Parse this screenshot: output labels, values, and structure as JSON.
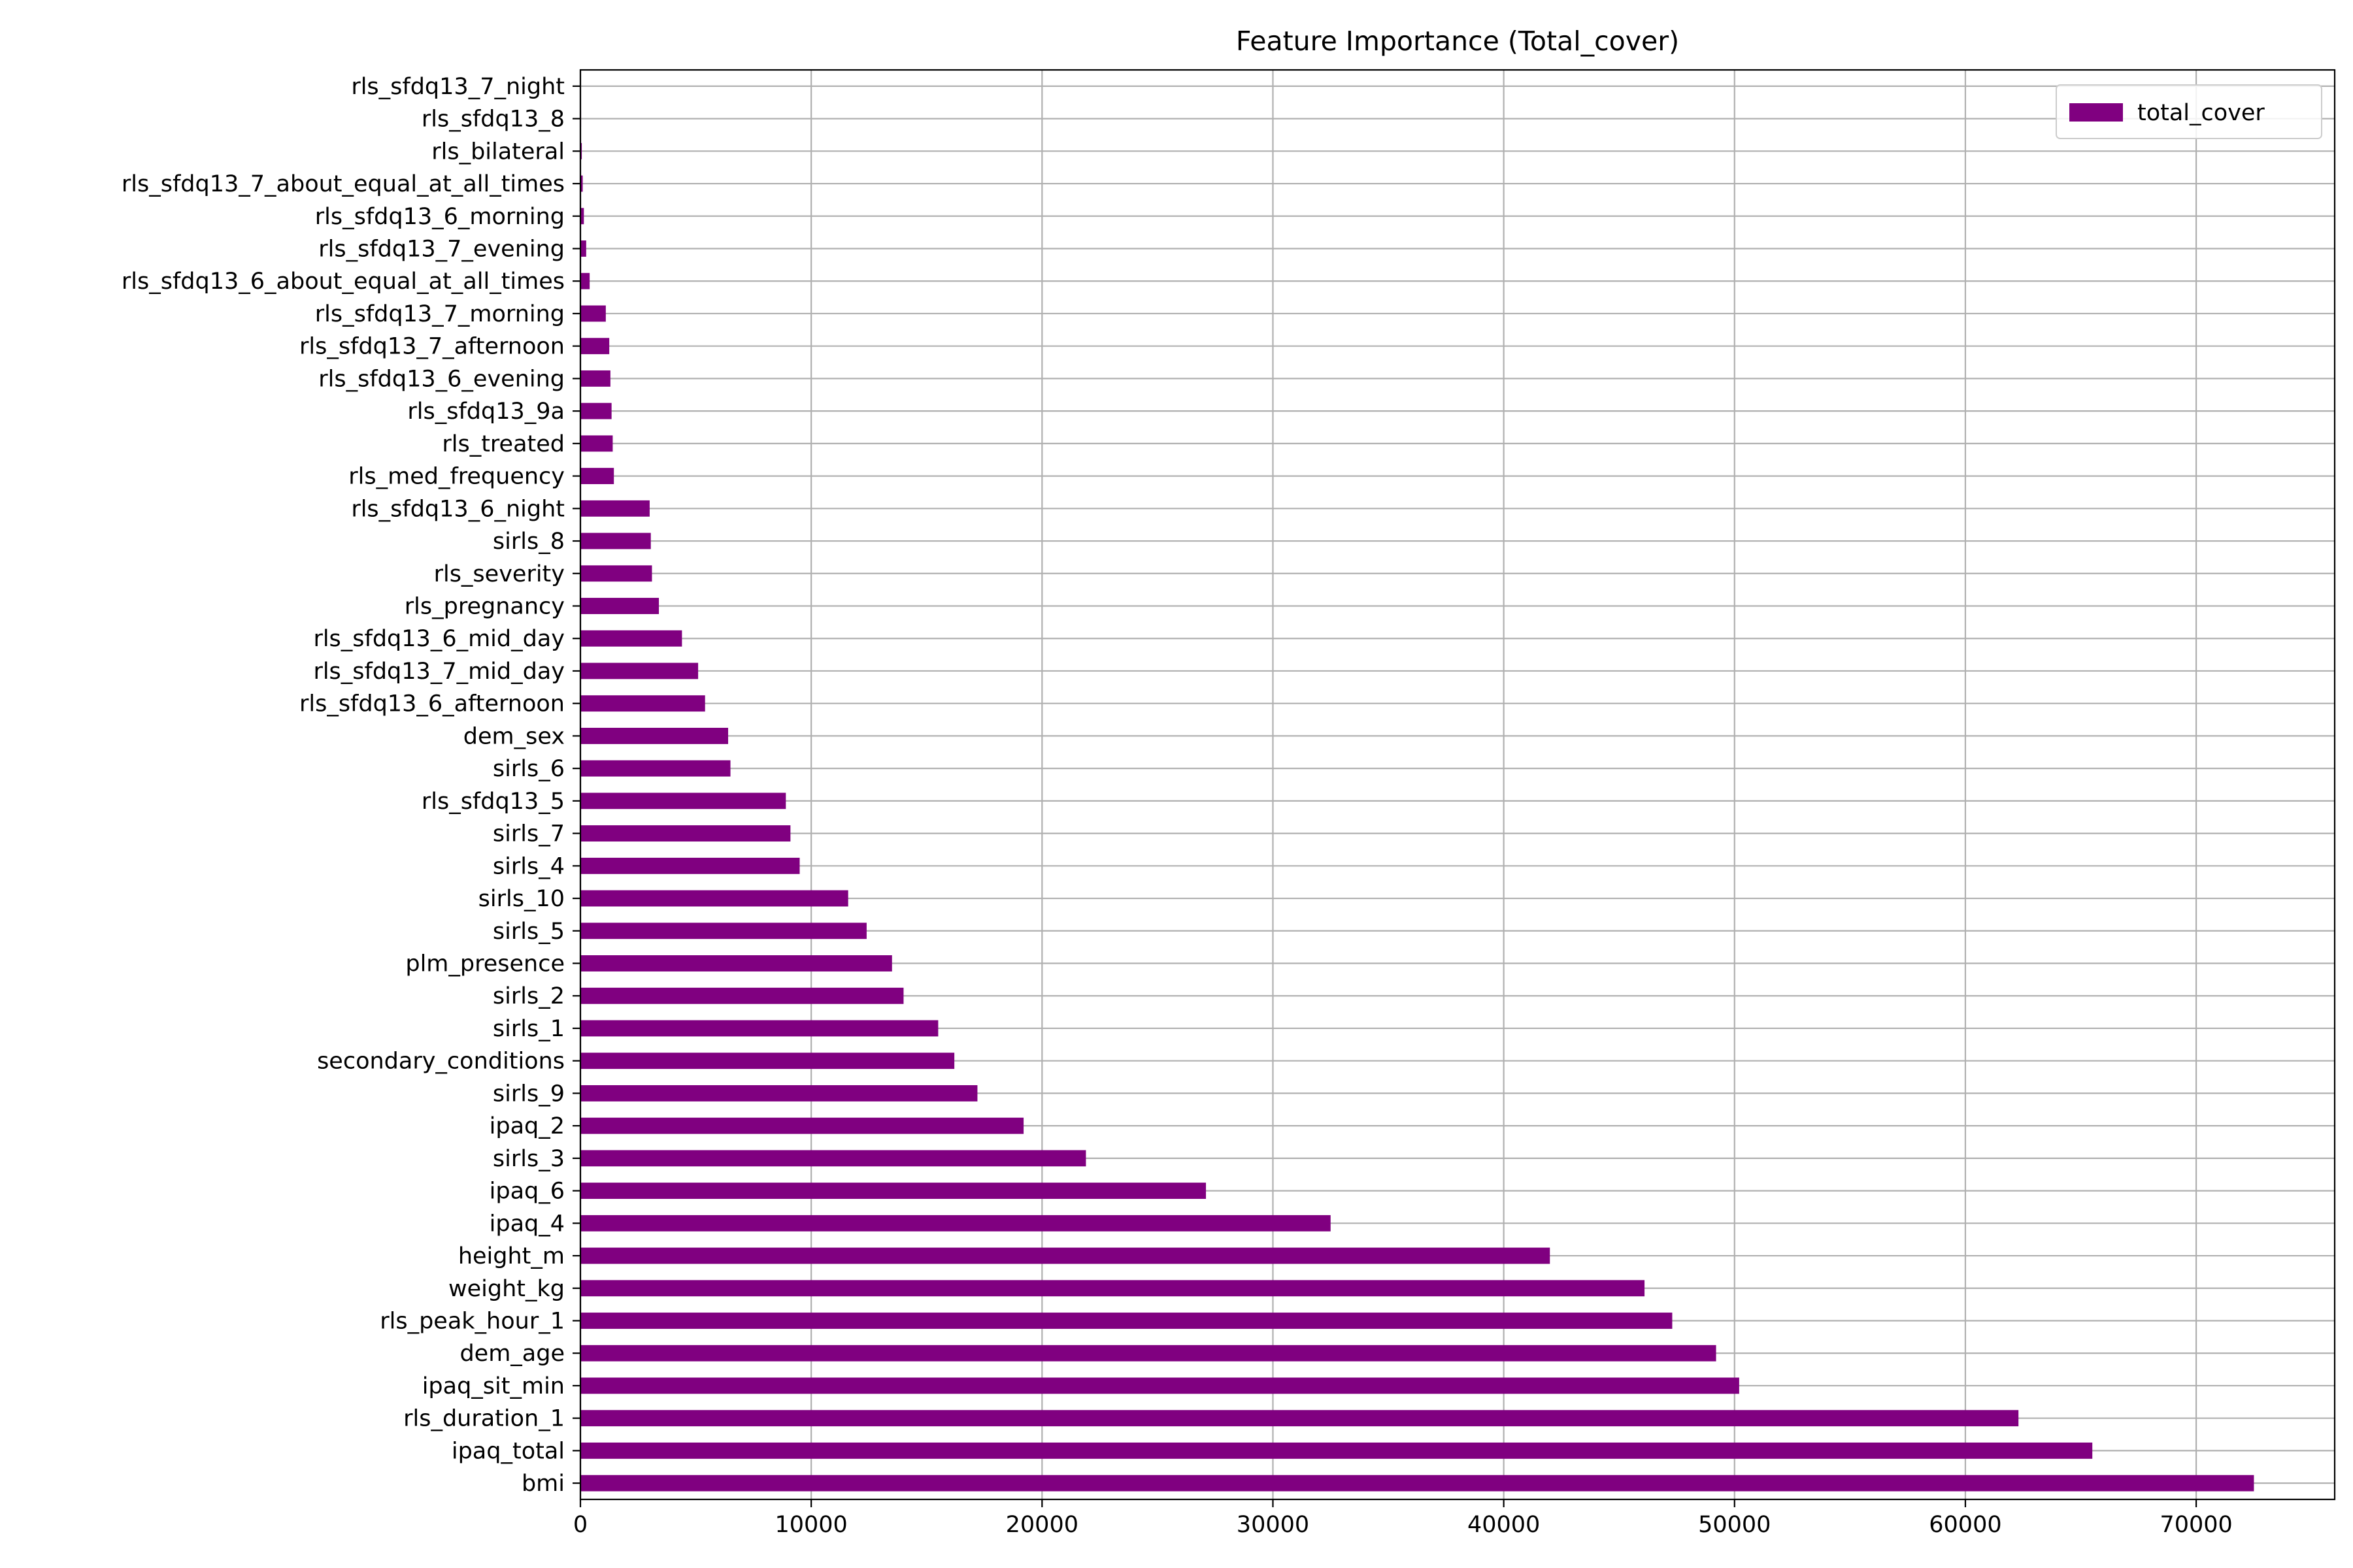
{
  "chart_data": {
    "type": "bar",
    "orientation": "horizontal",
    "title": "Feature Importance (Total_cover)",
    "xlabel": "",
    "ylabel": "",
    "xlim": [
      0,
      76000
    ],
    "x_ticks": [
      0,
      10000,
      20000,
      30000,
      40000,
      50000,
      60000,
      70000
    ],
    "grid": true,
    "legend_position": "top-right",
    "bar_color": "#800080",
    "categories": [
      "bmi",
      "ipaq_total",
      "rls_duration_1",
      "ipaq_sit_min",
      "dem_age",
      "rls_peak_hour_1",
      "weight_kg",
      "height_m",
      "ipaq_4",
      "ipaq_6",
      "sirls_3",
      "ipaq_2",
      "sirls_9",
      "secondary_conditions",
      "sirls_1",
      "sirls_2",
      "plm_presence",
      "sirls_5",
      "sirls_10",
      "sirls_4",
      "sirls_7",
      "rls_sfdq13_5",
      "sirls_6",
      "dem_sex",
      "rls_sfdq13_6_afternoon",
      "rls_sfdq13_7_mid_day",
      "rls_sfdq13_6_mid_day",
      "rls_pregnancy",
      "rls_severity",
      "sirls_8",
      "rls_sfdq13_6_night",
      "rls_med_frequency",
      "rls_treated",
      "rls_sfdq13_9a",
      "rls_sfdq13_6_evening",
      "rls_sfdq13_7_afternoon",
      "rls_sfdq13_7_morning",
      "rls_sfdq13_6_about_equal_at_all_times",
      "rls_sfdq13_7_evening",
      "rls_sfdq13_6_morning",
      "rls_sfdq13_7_about_equal_at_all_times",
      "rls_bilateral",
      "rls_sfdq13_8",
      "rls_sfdq13_7_night"
    ],
    "series": [
      {
        "name": "total_cover",
        "values": [
          72500,
          65500,
          62300,
          50200,
          49200,
          47300,
          46100,
          42000,
          32500,
          27100,
          21900,
          19200,
          17200,
          16200,
          15500,
          14000,
          13500,
          12400,
          11600,
          9500,
          9100,
          8900,
          6500,
          6400,
          5400,
          5100,
          4400,
          3400,
          3100,
          3050,
          3000,
          1450,
          1400,
          1350,
          1300,
          1250,
          1100,
          400,
          250,
          150,
          100,
          60,
          30,
          10
        ]
      }
    ]
  }
}
